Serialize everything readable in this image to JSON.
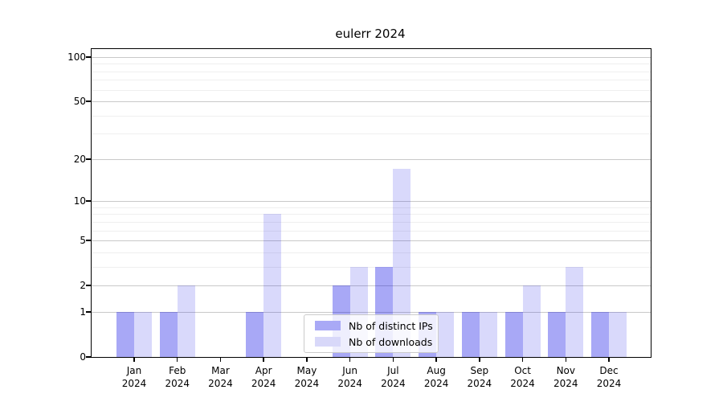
{
  "figure": {
    "background": "#ffffff"
  },
  "chart_data": {
    "type": "bar",
    "title": "eulerr 2024",
    "categories": [
      "Jan",
      "Feb",
      "Mar",
      "Apr",
      "May",
      "Jun",
      "Jul",
      "Aug",
      "Sep",
      "Oct",
      "Nov",
      "Dec"
    ],
    "x_sublabel_year": "2024",
    "series": [
      {
        "name": "Nb of distinct IPs",
        "color": "rgba(0,0,230,0.34)",
        "swatch_color": "#a9a9f6",
        "values": [
          1,
          1,
          0,
          1,
          0,
          2,
          3,
          1,
          1,
          1,
          1,
          1
        ]
      },
      {
        "name": "Nb of downloads",
        "color": "rgba(0,0,230,0.15)",
        "swatch_color": "#d8d8f9",
        "values": [
          1,
          2,
          0,
          8,
          0,
          3,
          17,
          1,
          1,
          2,
          3,
          1
        ]
      }
    ],
    "yscale": "log1p",
    "yticks": [
      0,
      1,
      2,
      5,
      10,
      20,
      50,
      100
    ],
    "minor_gridlines": [
      3,
      4,
      6,
      7,
      8,
      9,
      30,
      40,
      60,
      70,
      80,
      90
    ],
    "ylim": [
      0,
      113
    ],
    "grid": true,
    "legend_position": "lower center",
    "axis_color": "#000000",
    "major_grid_color": "#c9c9c9",
    "minor_grid_color": "#efefef"
  }
}
